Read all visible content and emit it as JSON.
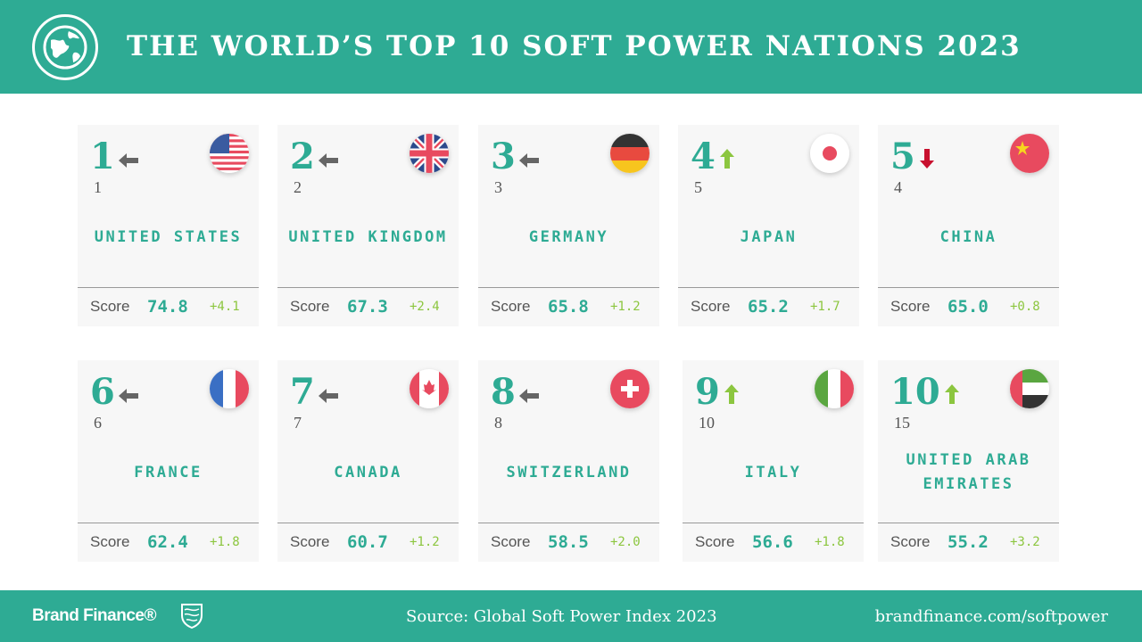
{
  "header": {
    "title": "THE WORLD’S TOP 10 SOFT POWER NATIONS 2023",
    "icon": "globe-icon"
  },
  "score_label": "Score",
  "colors": {
    "accent": "#2eab94",
    "up": "#8cc63f",
    "down": "#c8102e",
    "same": "#666666"
  },
  "countries": [
    {
      "rank": "1",
      "prev": "1",
      "trend": "same",
      "name": "UNITED STATES",
      "score": "74.8",
      "delta": "+4.1",
      "flag": "us"
    },
    {
      "rank": "2",
      "prev": "2",
      "trend": "same",
      "name": "UNITED KINGDOM",
      "score": "67.3",
      "delta": "+2.4",
      "flag": "uk"
    },
    {
      "rank": "3",
      "prev": "3",
      "trend": "same",
      "name": "GERMANY",
      "score": "65.8",
      "delta": "+1.2",
      "flag": "de"
    },
    {
      "rank": "4",
      "prev": "5",
      "trend": "up",
      "name": "JAPAN",
      "score": "65.2",
      "delta": "+1.7",
      "flag": "jp"
    },
    {
      "rank": "5",
      "prev": "4",
      "trend": "down",
      "name": "CHINA",
      "score": "65.0",
      "delta": "+0.8",
      "flag": "cn"
    },
    {
      "rank": "6",
      "prev": "6",
      "trend": "same",
      "name": "FRANCE",
      "score": "62.4",
      "delta": "+1.8",
      "flag": "fr"
    },
    {
      "rank": "7",
      "prev": "7",
      "trend": "same",
      "name": "CANADA",
      "score": "60.7",
      "delta": "+1.2",
      "flag": "ca"
    },
    {
      "rank": "8",
      "prev": "8",
      "trend": "same",
      "name": "SWITZERLAND",
      "score": "58.5",
      "delta": "+2.0",
      "flag": "ch"
    },
    {
      "rank": "9",
      "prev": "10",
      "trend": "up",
      "name": "ITALY",
      "score": "56.6",
      "delta": "+1.8",
      "flag": "it"
    },
    {
      "rank": "10",
      "prev": "15",
      "trend": "up",
      "name": "UNITED ARAB EMIRATES",
      "score": "55.2",
      "delta": "+3.2",
      "flag": "ae"
    }
  ],
  "footer": {
    "brand": "Brand Finance®",
    "source": "Source: Global Soft Power Index 2023",
    "url": "brandfinance.com/softpower"
  }
}
